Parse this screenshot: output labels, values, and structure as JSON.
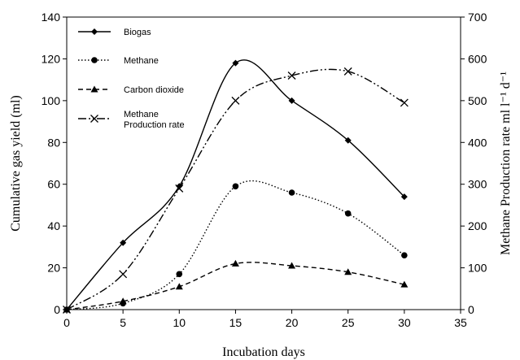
{
  "chart_data": {
    "type": "line",
    "xlabel": "Incubation days",
    "ylabel_left": "Cumulative gas yield (ml)",
    "ylabel_right": "Methane Production rate ml l⁻¹ d⁻¹",
    "xlim": [
      0,
      35
    ],
    "ylim_left": [
      0,
      140
    ],
    "ylim_right": [
      0,
      700
    ],
    "x_ticks": [
      "0",
      "5",
      "10",
      "15",
      "20",
      "25",
      "30",
      "35"
    ],
    "y_ticks_left": [
      "0",
      "20",
      "40",
      "60",
      "80",
      "100",
      "120",
      "140"
    ],
    "y_ticks_right": [
      "0",
      "100",
      "200",
      "300",
      "400",
      "500",
      "600",
      "700"
    ],
    "grid": false,
    "legend_position": "top-left",
    "series": [
      {
        "name": "Biogas",
        "axis": "left",
        "marker": "diamond",
        "line_style": "solid",
        "x": [
          0,
          5,
          10,
          15,
          20,
          25,
          30
        ],
        "values": [
          0,
          32,
          59,
          118,
          100,
          81,
          54
        ]
      },
      {
        "name": "Methane",
        "axis": "left",
        "marker": "circle",
        "line_style": "dotted",
        "x": [
          0,
          5,
          10,
          15,
          20,
          25,
          30
        ],
        "values": [
          0,
          3,
          17,
          59,
          56,
          46,
          26
        ]
      },
      {
        "name": "Carbon dioxide",
        "axis": "left",
        "marker": "triangle",
        "line_style": "dashed",
        "x": [
          0,
          5,
          10,
          15,
          20,
          25,
          30
        ],
        "values": [
          0,
          4,
          11,
          22,
          21,
          18,
          12
        ]
      },
      {
        "name": "Methane\nProduction rate",
        "legend_lines": [
          "Methane",
          "Production rate"
        ],
        "axis": "right",
        "marker": "x",
        "line_style": "dash-dot-dot",
        "x": [
          0,
          5,
          10,
          15,
          20,
          25,
          30
        ],
        "values": [
          0,
          85,
          290,
          500,
          560,
          570,
          495
        ]
      }
    ]
  }
}
